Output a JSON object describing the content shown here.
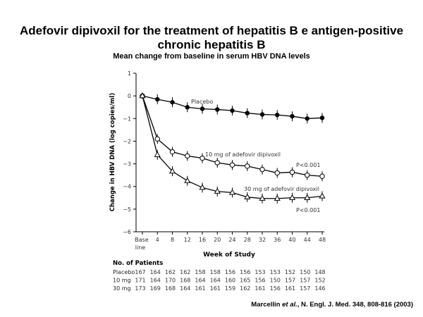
{
  "title_line1": "Adefovir dipivoxil for the treatment of hepatitis B e antigen-positive",
  "title_line2": "chronic hepatitis B",
  "subtitle": "Mean change from baseline in serum HBV DNA levels",
  "citation": {
    "authors": "Marcellin ",
    "etal": "et al.",
    "rest": ", N. Engl. J. Med. 348, 808-816 (2003)"
  },
  "chart_data": {
    "type": "line",
    "xlabel": "Week of Study",
    "ylabel": "Change in HBV DNA (log copies/ml)",
    "ylim": [
      -6,
      1
    ],
    "yticks": [
      1,
      0,
      -1,
      -2,
      -3,
      -4,
      -5,
      -6
    ],
    "x": [
      0,
      4,
      8,
      12,
      16,
      20,
      24,
      28,
      32,
      36,
      40,
      44,
      48
    ],
    "xtick_labels": [
      "Base",
      "4",
      "8",
      "12",
      "16",
      "20",
      "24",
      "28",
      "32",
      "36",
      "40",
      "44",
      "48"
    ],
    "xtick_baseline_second_line": "line",
    "series": [
      {
        "name": "Placebo",
        "marker": "filled-circle",
        "values": [
          0,
          -0.15,
          -0.28,
          -0.5,
          -0.57,
          -0.6,
          -0.65,
          -0.76,
          -0.82,
          -0.84,
          -0.9,
          -1.0,
          -0.97
        ]
      },
      {
        "name": "10 mg of adefovir dipivoxil",
        "marker": "open-circle",
        "values": [
          0,
          -1.9,
          -2.47,
          -2.65,
          -2.75,
          -2.95,
          -3.05,
          -3.1,
          -3.25,
          -3.4,
          -3.37,
          -3.5,
          -3.55
        ]
      },
      {
        "name": "30 mg of adefovir dipivoxil",
        "marker": "open-triangle",
        "values": [
          0,
          -2.6,
          -3.33,
          -3.75,
          -4.05,
          -4.22,
          -4.27,
          -4.47,
          -4.53,
          -4.53,
          -4.5,
          -4.5,
          -4.43
        ]
      }
    ],
    "annotations": [
      "P<0.001",
      "P<0.001"
    ],
    "patients_table": {
      "heading": "No. of Patients",
      "rows": [
        {
          "label": "Placebo",
          "values": [
            167,
            164,
            162,
            162,
            158,
            158,
            156,
            156,
            153,
            153,
            152,
            150,
            148
          ]
        },
        {
          "label": "10 mg",
          "values": [
            171,
            164,
            170,
            168,
            164,
            164,
            160,
            165,
            156,
            150,
            157,
            157,
            152
          ]
        },
        {
          "label": "30 mg",
          "values": [
            173,
            169,
            168,
            164,
            161,
            161,
            159,
            162,
            161,
            156,
            161,
            157,
            146
          ]
        }
      ]
    }
  }
}
